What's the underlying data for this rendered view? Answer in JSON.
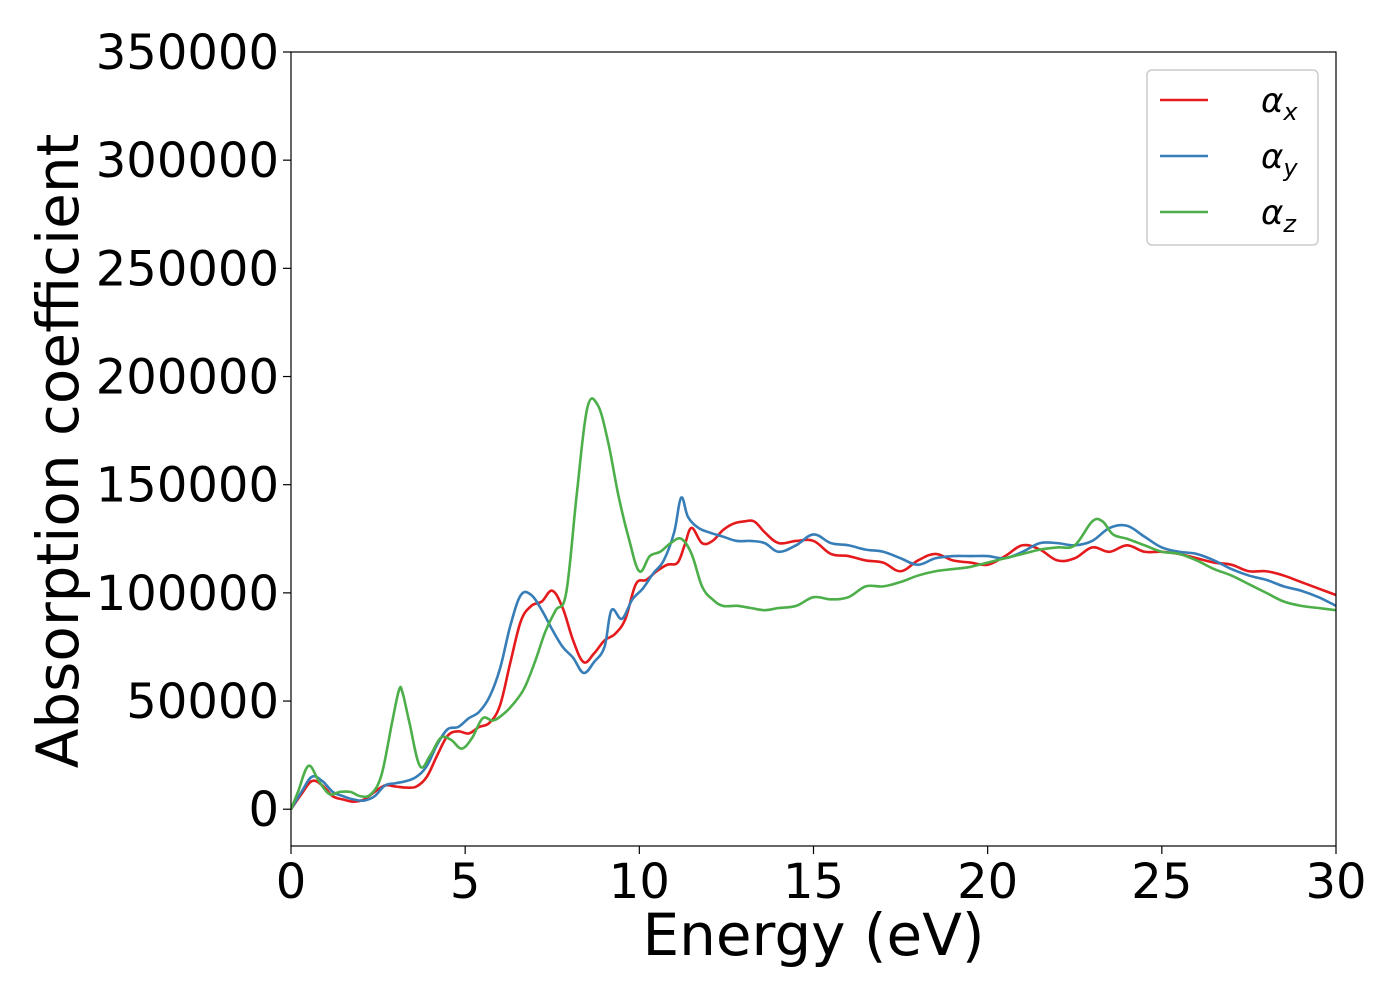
{
  "chart_data": {
    "type": "line",
    "xlabel": "Energy (eV)",
    "ylabel": "Absorption coefficient",
    "xlim": [
      0,
      30
    ],
    "ylim": [
      -17000,
      350000
    ],
    "x_ticks": [
      "0",
      "5",
      "10",
      "15",
      "20",
      "25",
      "30"
    ],
    "y_ticks": [
      "0",
      "50000",
      "100000",
      "150000",
      "200000",
      "250000",
      "300000",
      "350000"
    ],
    "x_tick_values": [
      0,
      5,
      10,
      15,
      20,
      25,
      30
    ],
    "y_tick_values": [
      0,
      50000,
      100000,
      150000,
      200000,
      250000,
      300000,
      350000
    ],
    "grid": false,
    "legend_position": "top-right",
    "series": [
      {
        "name": "α_x",
        "label_main": "α",
        "label_sub": "x",
        "color": "#e41a1c",
        "x": [
          0,
          0.3,
          0.6,
          0.9,
          1.2,
          1.5,
          1.8,
          2.1,
          2.4,
          2.7,
          3.0,
          3.3,
          3.6,
          3.9,
          4.2,
          4.5,
          4.8,
          5.1,
          5.4,
          5.7,
          6.0,
          6.3,
          6.6,
          6.9,
          7.2,
          7.5,
          7.8,
          8.1,
          8.4,
          8.7,
          9.0,
          9.3,
          9.6,
          9.9,
          10.2,
          10.5,
          10.8,
          11.1,
          11.3,
          11.5,
          11.8,
          12.1,
          12.4,
          12.7,
          13.0,
          13.3,
          13.6,
          14.0,
          14.5,
          15.0,
          15.5,
          16.0,
          16.5,
          17.0,
          17.5,
          18.0,
          18.5,
          19.0,
          19.5,
          20.0,
          20.5,
          21.0,
          21.5,
          22.0,
          22.5,
          23.0,
          23.5,
          24.0,
          24.5,
          25.0,
          25.5,
          26.0,
          26.5,
          27.0,
          27.5,
          28.0,
          28.5,
          29.0,
          29.5,
          30.0
        ],
        "y": [
          0,
          7000,
          13000,
          11000,
          6000,
          4500,
          3500,
          4500,
          8000,
          11000,
          10500,
          10000,
          10500,
          15000,
          25000,
          34000,
          36000,
          35000,
          38000,
          40000,
          48000,
          68000,
          87000,
          94000,
          96000,
          101000,
          93000,
          78000,
          68000,
          72000,
          78000,
          81000,
          88000,
          104000,
          106000,
          110000,
          113000,
          114000,
          122000,
          130000,
          123000,
          124000,
          129000,
          132000,
          133000,
          133000,
          128000,
          123000,
          124000,
          124000,
          118000,
          117000,
          115000,
          114000,
          110000,
          115000,
          118000,
          115000,
          114000,
          113000,
          117000,
          122000,
          120000,
          115000,
          116000,
          121000,
          119000,
          122000,
          119000,
          119000,
          118000,
          116000,
          114000,
          113000,
          110000,
          110000,
          108000,
          105000,
          102000,
          99000
        ]
      },
      {
        "name": "α_y",
        "label_main": "α",
        "label_sub": "y",
        "color": "#377eb8",
        "x": [
          0,
          0.3,
          0.6,
          0.9,
          1.2,
          1.5,
          1.8,
          2.1,
          2.4,
          2.7,
          3.0,
          3.3,
          3.6,
          3.9,
          4.2,
          4.5,
          4.8,
          5.1,
          5.4,
          5.7,
          6.0,
          6.3,
          6.6,
          6.9,
          7.2,
          7.5,
          7.8,
          8.1,
          8.4,
          8.7,
          9.0,
          9.2,
          9.5,
          9.8,
          10.1,
          10.4,
          10.7,
          11.0,
          11.2,
          11.4,
          11.7,
          12.0,
          12.4,
          12.8,
          13.2,
          13.6,
          14.0,
          14.5,
          15.0,
          15.5,
          16.0,
          16.5,
          17.0,
          17.5,
          18.0,
          18.5,
          19.0,
          19.5,
          20.0,
          20.5,
          21.0,
          21.5,
          22.0,
          22.5,
          23.0,
          23.5,
          24.0,
          24.5,
          25.0,
          25.5,
          26.0,
          26.5,
          27.0,
          27.5,
          28.0,
          28.5,
          29.0,
          29.5,
          30.0
        ],
        "y": [
          0,
          8000,
          15000,
          13000,
          8000,
          6000,
          4500,
          4000,
          6000,
          11000,
          12000,
          13000,
          15000,
          20000,
          30000,
          37000,
          38000,
          42000,
          45000,
          52000,
          65000,
          85000,
          99000,
          99000,
          92000,
          83000,
          75000,
          70000,
          63000,
          68000,
          75000,
          92000,
          88000,
          97000,
          102000,
          109000,
          115000,
          128000,
          144000,
          135000,
          130000,
          128000,
          126000,
          124000,
          124000,
          123000,
          119000,
          122000,
          127000,
          123000,
          122000,
          120000,
          119000,
          116000,
          113000,
          116000,
          117000,
          117000,
          117000,
          116000,
          119000,
          123000,
          123000,
          122000,
          124000,
          130000,
          131000,
          126000,
          121000,
          119000,
          118000,
          115000,
          111000,
          108000,
          106000,
          103000,
          101000,
          98000,
          94000
        ]
      },
      {
        "name": "α_z",
        "label_main": "α",
        "label_sub": "z",
        "color": "#4daf4a",
        "x": [
          0,
          0.2,
          0.5,
          0.8,
          1.1,
          1.4,
          1.7,
          2.0,
          2.3,
          2.6,
          2.9,
          3.1,
          3.2,
          3.4,
          3.7,
          4.0,
          4.3,
          4.6,
          4.9,
          5.2,
          5.5,
          5.8,
          6.1,
          6.4,
          6.7,
          7.0,
          7.3,
          7.6,
          7.9,
          8.2,
          8.5,
          8.8,
          9.1,
          9.4,
          9.7,
          10.0,
          10.3,
          10.6,
          10.9,
          11.2,
          11.5,
          11.8,
          12.1,
          12.4,
          12.8,
          13.2,
          13.6,
          14.0,
          14.5,
          15.0,
          15.5,
          16.0,
          16.5,
          17.0,
          17.5,
          18.0,
          18.5,
          19.0,
          19.5,
          20.0,
          20.5,
          21.0,
          21.5,
          22.0,
          22.5,
          23.0,
          23.3,
          23.6,
          24.0,
          24.5,
          25.0,
          25.5,
          26.0,
          26.5,
          27.0,
          27.5,
          28.0,
          28.5,
          29.0,
          29.5,
          30.0
        ],
        "y": [
          0,
          8000,
          20000,
          13000,
          7000,
          8000,
          8000,
          6000,
          7000,
          16000,
          40000,
          55000,
          54000,
          40000,
          20000,
          25000,
          33000,
          32000,
          28000,
          33000,
          42000,
          41000,
          44000,
          49000,
          56000,
          68000,
          82000,
          92000,
          100000,
          145000,
          185000,
          187000,
          170000,
          145000,
          125000,
          110000,
          117000,
          119000,
          123000,
          125000,
          118000,
          103000,
          97000,
          94000,
          94000,
          93000,
          92000,
          93000,
          94000,
          98000,
          97000,
          98000,
          103000,
          103000,
          105000,
          108000,
          110000,
          111000,
          112000,
          114000,
          116000,
          118000,
          120000,
          121000,
          122000,
          133000,
          133000,
          127000,
          125000,
          122000,
          119000,
          118000,
          115000,
          111000,
          108000,
          104000,
          100000,
          96000,
          94000,
          93000,
          92000
        ]
      }
    ]
  }
}
